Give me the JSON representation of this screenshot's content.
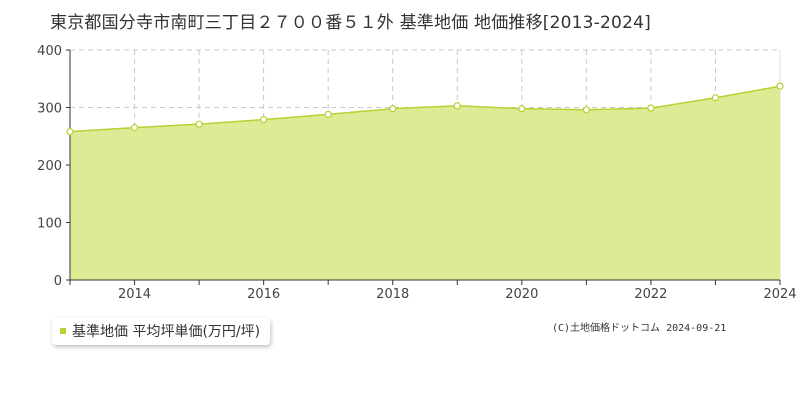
{
  "title": "東京都国分寺市南町三丁目２７００番５１外 基準地価 地価推移[2013-2024]",
  "legend_label": "基準地価 平均坪単価(万円/坪)",
  "copyright": "(C)土地価格ドットコム 2024-09-21",
  "colors": {
    "fill": "#dcec95",
    "line": "#b5d233",
    "marker_fill": "#ffffff",
    "grid": "#c8c8c8",
    "axis": "#333333"
  },
  "chart_data": {
    "type": "area",
    "x": [
      2013,
      2014,
      2015,
      2016,
      2017,
      2018,
      2019,
      2020,
      2021,
      2022,
      2023,
      2024
    ],
    "series": [
      {
        "name": "基準地価 平均坪単価(万円/坪)",
        "values": [
          258,
          265,
          271,
          279,
          288,
          298,
          303,
          298,
          296,
          299,
          317,
          337
        ]
      }
    ],
    "xlim": [
      2013,
      2024
    ],
    "ylim": [
      0,
      400
    ],
    "yticks": [
      0,
      100,
      200,
      300,
      400
    ],
    "xticks": [
      2014,
      2016,
      2018,
      2020,
      2022,
      2024
    ],
    "grid": true,
    "legend_position": "bottom-left"
  }
}
